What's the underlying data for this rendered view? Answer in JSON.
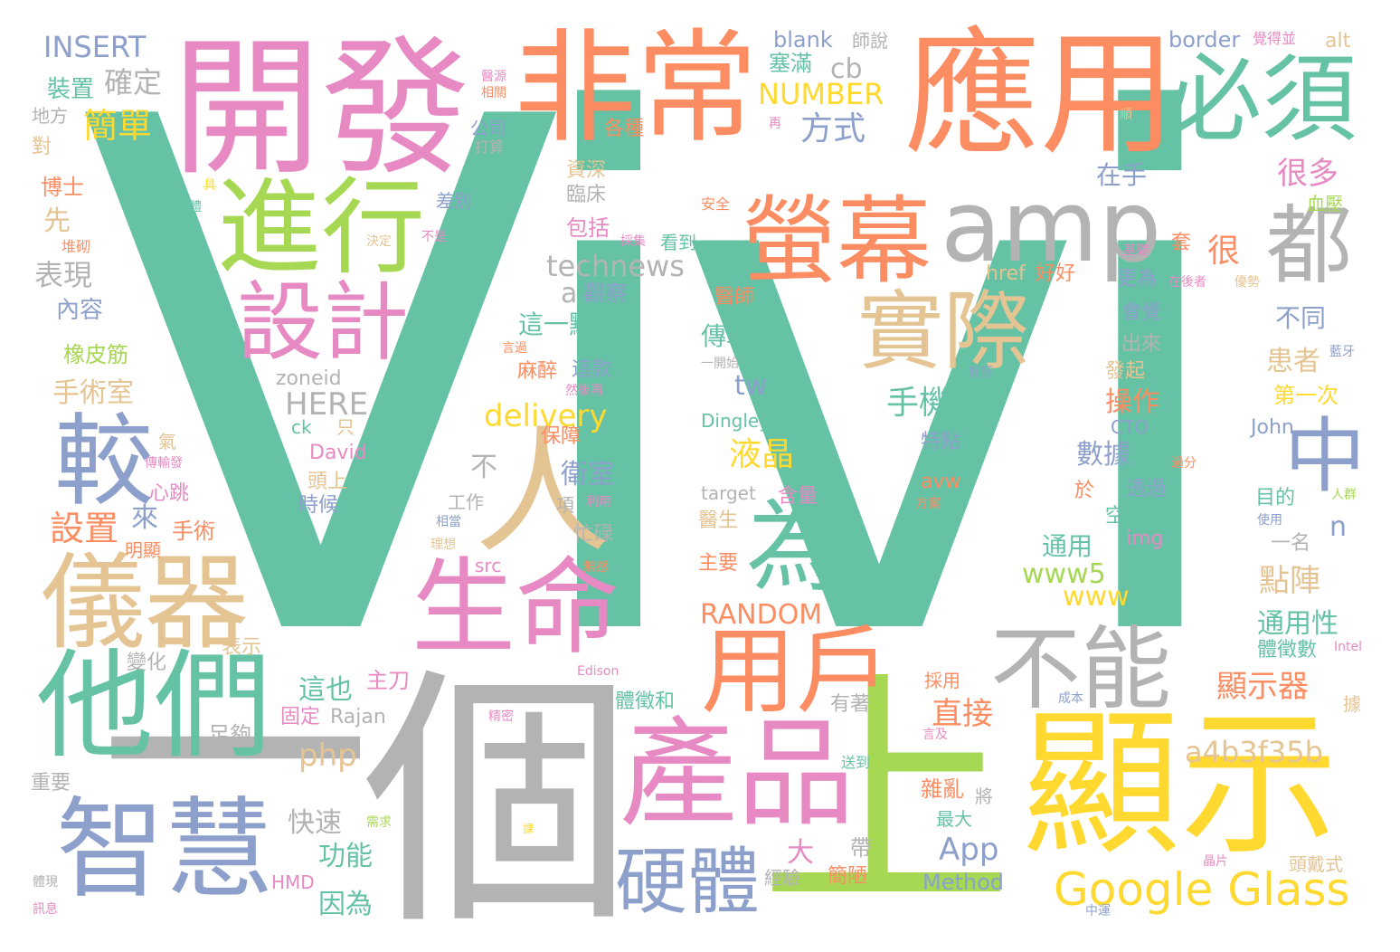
{
  "palette": {
    "teal": "#66c2a5",
    "orange": "#fc8d62",
    "blue": "#8da0cb",
    "pink": "#e78ac3",
    "green": "#a6d854",
    "yellow": "#ffd92f",
    "tan": "#e5c494",
    "gray": "#b3b3b3"
  },
  "words": [
    "Vivi",
    "個",
    "上",
    "一",
    "開發",
    "非常",
    "應用",
    "必須",
    "進行",
    "amp",
    "螢幕",
    "都",
    "設計",
    "實際",
    "較",
    "人",
    "中",
    "為",
    "儀器",
    "生命",
    "他們",
    "用戶",
    "不能",
    "產品",
    "顯示",
    "智慧",
    "硬體",
    "Google Glass",
    "INSERT",
    "確定",
    "裝置",
    "簡單",
    "地方",
    "對",
    "博士",
    "具",
    "庭體",
    "先",
    "堆砌",
    "表現",
    "內容",
    "橡皮筋",
    "手術室",
    "氣",
    "傳輸發",
    "心跳",
    "設置",
    "來",
    "手術",
    "明顯",
    "變化",
    "表示",
    "這也",
    "主刀",
    "足夠",
    "固定",
    "Rajan",
    "重要",
    "快速",
    "功能",
    "因為",
    "HMD",
    "體現",
    "訊息",
    "需求",
    "php",
    "blank",
    "師說",
    "塞滿",
    "cb",
    "NUMBER",
    "方式",
    "公司",
    "打算",
    "資深",
    "臨床",
    "差別",
    "包括",
    "不是",
    "決定",
    "technews",
    "a",
    "觀察",
    "這一點",
    "言過",
    "麻醉",
    "這款",
    "然後再",
    "zoneid",
    "HERE",
    "ck",
    "只",
    "David",
    "頭上",
    "時候",
    "不",
    "衛室",
    "delivery",
    "保障",
    "工作",
    "項",
    "相當",
    "利用",
    "理想",
    "忙碌",
    "src",
    "無感",
    "傳輸",
    "一開始",
    "tw",
    "液晶",
    "醫師",
    "手機",
    "特點",
    "Dingley",
    "target",
    "含量",
    "醫生",
    "主要",
    "RANDOM",
    "Edison",
    "體徵和",
    "精密",
    "送到",
    "大",
    "經驗",
    "App",
    "Method",
    "帶",
    "簡陋",
    "border",
    "覺得並",
    "alt",
    "順",
    "再",
    "各種",
    "安全",
    "看到",
    "採集",
    "在手",
    "很多",
    "血壓",
    "很",
    "套",
    "基礎",
    "href",
    "好好",
    "更為",
    "在後者",
    "優勢",
    "會覺",
    "出來",
    "不同",
    "患者",
    "藍牙",
    "有所",
    "發起",
    "第一次",
    "操作",
    "CTO",
    "John",
    "數據",
    "於",
    "透過",
    "過分",
    "avw",
    "方案",
    "空間",
    "目的",
    "人群",
    "使用",
    "img",
    "一名",
    "n",
    "通用",
    "www5",
    "www",
    "點陣",
    "通用性",
    "體徵數",
    "Intel",
    "據",
    "顯示器",
    "直接",
    "採用",
    "有著",
    "成本",
    "言及",
    "a4b3f35b",
    "雜亂",
    "將",
    "最大",
    "頭戴式",
    "晶片",
    "中運",
    "課",
    "醫源",
    "相關"
  ]
}
